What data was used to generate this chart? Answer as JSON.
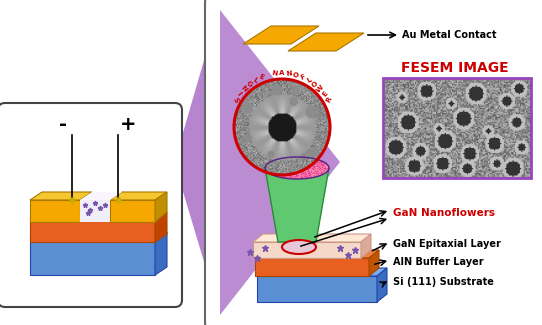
{
  "bg_color": "#ffffff",
  "purple_color": "#ab6fc8",
  "gold_color": "#f5a800",
  "orange_color": "#e86020",
  "blue_color": "#5b8fd4",
  "blue_dark": "#3a6dbf",
  "green_color": "#5dbf6e",
  "pink_color": "#f5d8c8",
  "red_color": "#cc0000",
  "white_color": "#ffffff",
  "labels": {
    "au_metal": "Au Metal Contact",
    "fesem": "FESEM IMAGE",
    "single_nf": "SINGLE NANOFLOWER",
    "gan_nf": "GaN Nanoflowers",
    "gan_epi": "GaN Epitaxial Layer",
    "aln": "AlN Buffer Layer",
    "si": "Si (111) Substrate"
  },
  "minus_label": "-",
  "plus_label": "+"
}
